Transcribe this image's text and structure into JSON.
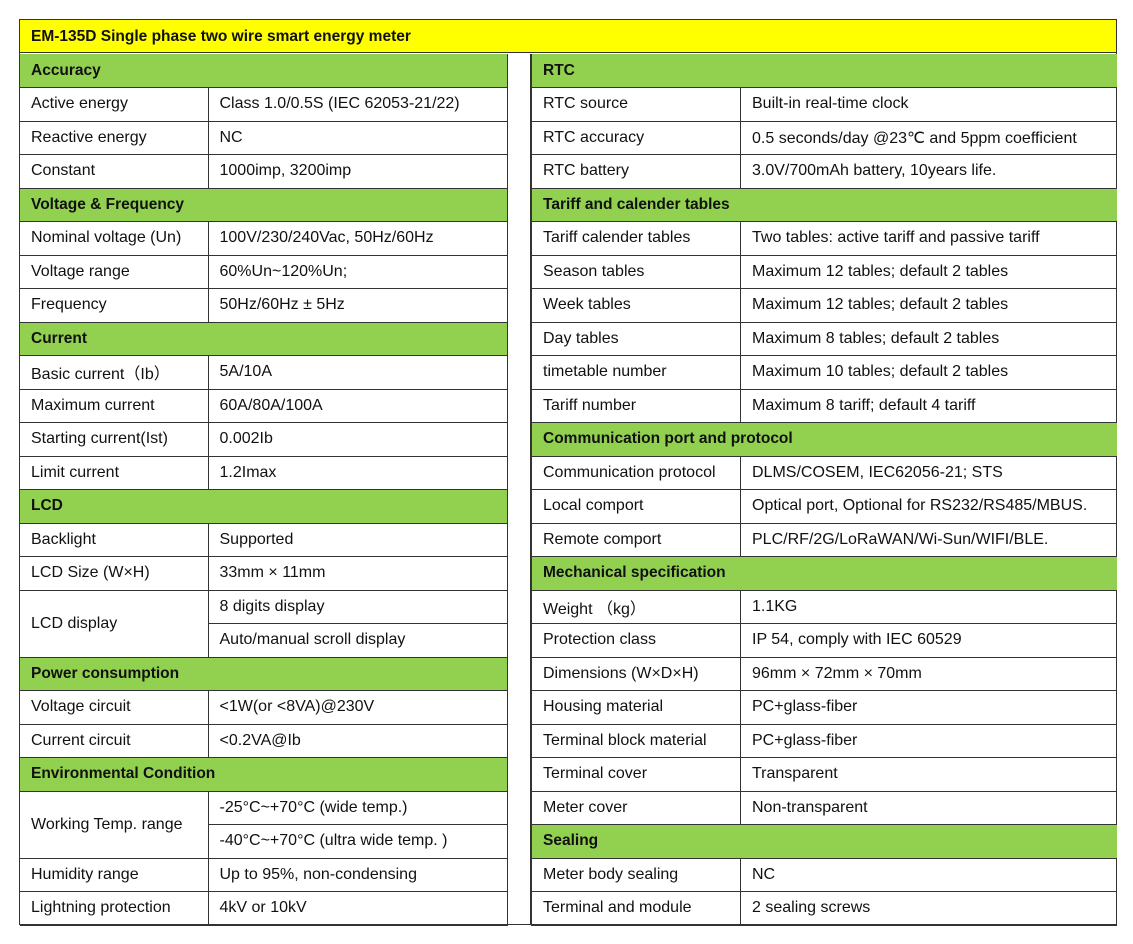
{
  "title": "EM-135D    Single phase two wire smart energy meter",
  "colors": {
    "title_bg": "#ffff00",
    "section_bg": "#92d050"
  },
  "left": [
    {
      "section": "Accuracy"
    },
    {
      "label": "Active energy",
      "value": "Class 1.0/0.5S (IEC 62053-21/22)"
    },
    {
      "label": "Reactive energy",
      "value": "NC"
    },
    {
      "label": "Constant",
      "value": "1000imp, 3200imp"
    },
    {
      "section": "Voltage & Frequency"
    },
    {
      "label": "Nominal voltage (Un)",
      "value": "100V/230/240Vac, 50Hz/60Hz"
    },
    {
      "label": "Voltage range",
      "value": "60%Un~120%Un;"
    },
    {
      "label": "Frequency",
      "value": "50Hz/60Hz ± 5Hz"
    },
    {
      "section": "Current"
    },
    {
      "label": "Basic current（Ib）",
      "value": "5A/10A"
    },
    {
      "label": "Maximum current",
      "value": "60A/80A/100A"
    },
    {
      "label": "Starting current(Ist)",
      "value": "0.002Ib"
    },
    {
      "label": "Limit current",
      "value": "1.2Imax"
    },
    {
      "section": "LCD"
    },
    {
      "label": "Backlight",
      "value": "Supported"
    },
    {
      "label": "LCD Size (W×H)",
      "value": "33mm × 11mm"
    },
    {
      "label": "LCD display",
      "values": [
        "8 digits display",
        "Auto/manual scroll display"
      ]
    },
    {
      "section": "Power consumption"
    },
    {
      "label": "Voltage circuit",
      "value": "<1W(or <8VA)@230V"
    },
    {
      "label": "Current circuit",
      "value": "<0.2VA@Ib"
    },
    {
      "section": "Environmental Condition"
    },
    {
      "label": "Working Temp. range",
      "values": [
        "-25°C~+70°C (wide temp.)",
        "-40°C~+70°C (ultra wide temp. )"
      ]
    },
    {
      "label": "Humidity range",
      "value": "Up to 95%, non-condensing"
    },
    {
      "label": "Lightning protection",
      "value": "4kV or 10kV"
    }
  ],
  "right": [
    {
      "section": "RTC"
    },
    {
      "label": "RTC source",
      "value": "Built-in real-time clock"
    },
    {
      "label": "RTC accuracy",
      "value": "0.5 seconds/day @23℃  and 5ppm coefficient"
    },
    {
      "label": "RTC battery",
      "value": "3.0V/700mAh battery, 10years life."
    },
    {
      "section": "Tariff and calender tables"
    },
    {
      "label": "Tariff calender tables",
      "value": "Two tables: active tariff and passive tariff"
    },
    {
      "label": "Season tables",
      "value": "Maximum 12 tables; default 2 tables"
    },
    {
      "label": "Week tables",
      "value": "Maximum 12 tables; default 2 tables"
    },
    {
      "label": "Day tables",
      "value": "Maximum 8 tables; default 2 tables"
    },
    {
      "label": "timetable number",
      "value": "Maximum 10 tables; default 2 tables"
    },
    {
      "label": "Tariff number",
      "value": "Maximum 8 tariff; default 4 tariff"
    },
    {
      "section": "Communication port and protocol"
    },
    {
      "label": "Communication protocol",
      "value": "DLMS/COSEM, IEC62056-21; STS"
    },
    {
      "label": "Local comport",
      "value": "Optical port, Optional for RS232/RS485/MBUS."
    },
    {
      "label": "Remote comport",
      "value": "PLC/RF/2G/LoRaWAN/Wi-Sun/WIFI/BLE."
    },
    {
      "section": "Mechanical specification"
    },
    {
      "label": "Weight  （kg）",
      "value": "1.1KG"
    },
    {
      "label": "Protection class",
      "value": "IP 54, comply with IEC 60529"
    },
    {
      "label": "Dimensions (W×D×H)",
      "value": "96mm × 72mm × 70mm"
    },
    {
      "label": "Housing material",
      "value": "PC+glass-fiber"
    },
    {
      "label": "Terminal block material",
      "value": "PC+glass-fiber"
    },
    {
      "label": "Terminal cover",
      "value": "Transparent"
    },
    {
      "label": "Meter cover",
      "value": "Non-transparent"
    },
    {
      "section": "Sealing"
    },
    {
      "label": "Meter body sealing",
      "value": "NC"
    },
    {
      "label": "Terminal and module",
      "value": "2 sealing screws"
    }
  ]
}
